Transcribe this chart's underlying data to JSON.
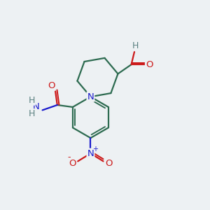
{
  "background_color": "#edf1f3",
  "bond_color": "#2d6b50",
  "bond_width": 1.6,
  "atom_colors": {
    "N": "#1a1acc",
    "O": "#cc1a1a",
    "H": "#5a8080"
  },
  "font_size": 9.5,
  "figsize": [
    3.0,
    3.0
  ],
  "dpi": 100
}
